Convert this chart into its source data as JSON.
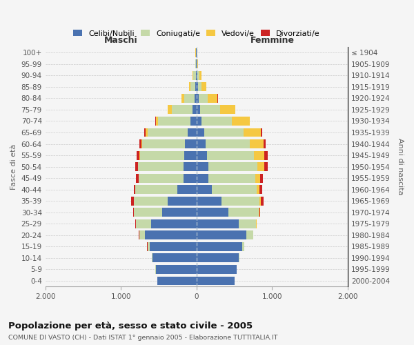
{
  "age_groups_bottom_to_top": [
    "0-4",
    "5-9",
    "10-14",
    "15-19",
    "20-24",
    "25-29",
    "30-34",
    "35-39",
    "40-44",
    "45-49",
    "50-54",
    "55-59",
    "60-64",
    "65-69",
    "70-74",
    "75-79",
    "80-84",
    "85-89",
    "90-94",
    "95-99",
    "100+"
  ],
  "birth_years_bottom_to_top": [
    "2000-2004",
    "1995-1999",
    "1990-1994",
    "1985-1989",
    "1980-1984",
    "1975-1979",
    "1970-1974",
    "1965-1969",
    "1960-1964",
    "1955-1959",
    "1950-1954",
    "1945-1949",
    "1940-1944",
    "1935-1939",
    "1930-1934",
    "1925-1929",
    "1920-1924",
    "1915-1919",
    "1910-1914",
    "1905-1909",
    "≤ 1904"
  ],
  "maschi": {
    "celibi": [
      520,
      540,
      580,
      620,
      680,
      600,
      450,
      380,
      250,
      175,
      170,
      160,
      150,
      120,
      80,
      50,
      30,
      20,
      10,
      5,
      5
    ],
    "coniugati": [
      2,
      5,
      10,
      30,
      80,
      200,
      380,
      450,
      560,
      590,
      600,
      590,
      570,
      530,
      430,
      280,
      130,
      60,
      30,
      10,
      5
    ],
    "vedovi": [
      0,
      0,
      0,
      0,
      0,
      1,
      1,
      1,
      2,
      3,
      5,
      5,
      10,
      20,
      30,
      50,
      40,
      20,
      10,
      5,
      2
    ],
    "divorziati": [
      0,
      0,
      0,
      1,
      2,
      5,
      10,
      30,
      20,
      30,
      35,
      40,
      30,
      20,
      10,
      5,
      2,
      0,
      0,
      0,
      0
    ]
  },
  "femmine": {
    "nubili": [
      500,
      530,
      560,
      600,
      660,
      560,
      420,
      330,
      200,
      160,
      155,
      140,
      120,
      100,
      70,
      50,
      30,
      20,
      10,
      5,
      5
    ],
    "coniugate": [
      2,
      5,
      10,
      30,
      90,
      230,
      400,
      500,
      600,
      620,
      650,
      620,
      580,
      520,
      400,
      260,
      120,
      50,
      25,
      10,
      5
    ],
    "vedove": [
      0,
      0,
      0,
      1,
      2,
      5,
      10,
      20,
      30,
      60,
      90,
      140,
      190,
      230,
      230,
      200,
      130,
      60,
      30,
      8,
      3
    ],
    "divorziate": [
      0,
      0,
      0,
      1,
      2,
      5,
      15,
      35,
      35,
      40,
      50,
      45,
      25,
      15,
      8,
      5,
      2,
      0,
      0,
      0,
      0
    ]
  },
  "colors": {
    "celibi": "#4a72b0",
    "coniugati": "#c5d9a8",
    "vedovi": "#f5c842",
    "divorziati": "#cc2222"
  },
  "xlim": 2000,
  "title": "Popolazione per età, sesso e stato civile - 2005",
  "subtitle": "COMUNE DI VASTO (CH) - Dati ISTAT 1° gennaio 2005 - Elaborazione TUTTITALIA.IT",
  "ylabel_left": "Fasce di età",
  "ylabel_right": "Anni di nascita",
  "xlabel_left": "Maschi",
  "xlabel_right": "Femmine",
  "bg_color": "#f5f5f5",
  "grid_color": "#cccccc"
}
